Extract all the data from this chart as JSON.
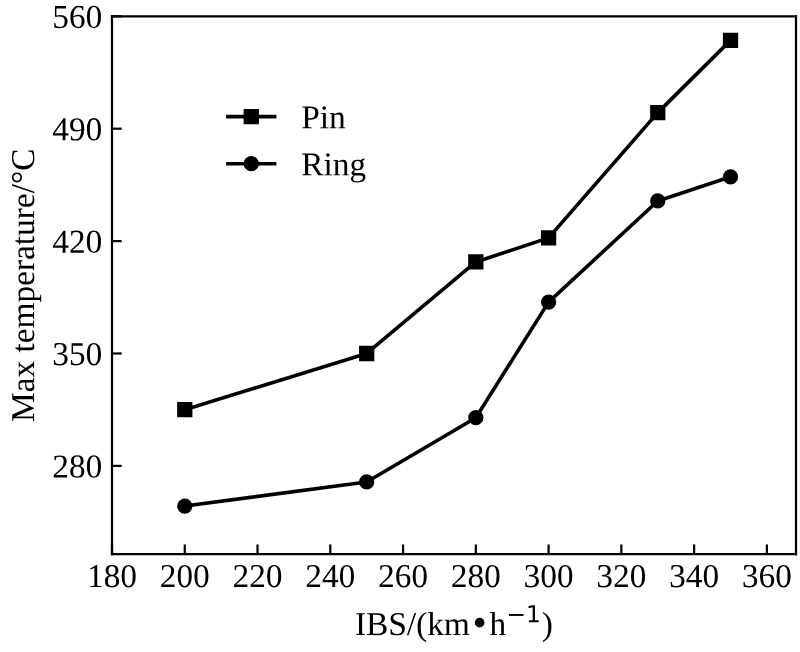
{
  "chart_data": {
    "type": "line",
    "xlabel": "IBS/(km•h$^{−1}$)",
    "ylabel": "Max temperature/°C",
    "x": [
      200,
      250,
      280,
      300,
      330,
      350
    ],
    "series": [
      {
        "name": "Pin",
        "color": "#000000",
        "marker": "square",
        "values": [
          315,
          350,
          407,
          422,
          500,
          545
        ]
      },
      {
        "name": "Ring",
        "color": "#000000",
        "marker": "circle",
        "values": [
          255,
          270,
          310,
          382,
          445,
          460
        ]
      }
    ],
    "xlim": [
      180,
      368
    ],
    "xticks": [
      180,
      200,
      220,
      240,
      260,
      280,
      300,
      320,
      340,
      360
    ],
    "ylim": [
      225,
      560
    ],
    "yticks": [
      280,
      350,
      420,
      490,
      560
    ],
    "grid": false,
    "legend": "top left",
    "line_style": "solid"
  }
}
